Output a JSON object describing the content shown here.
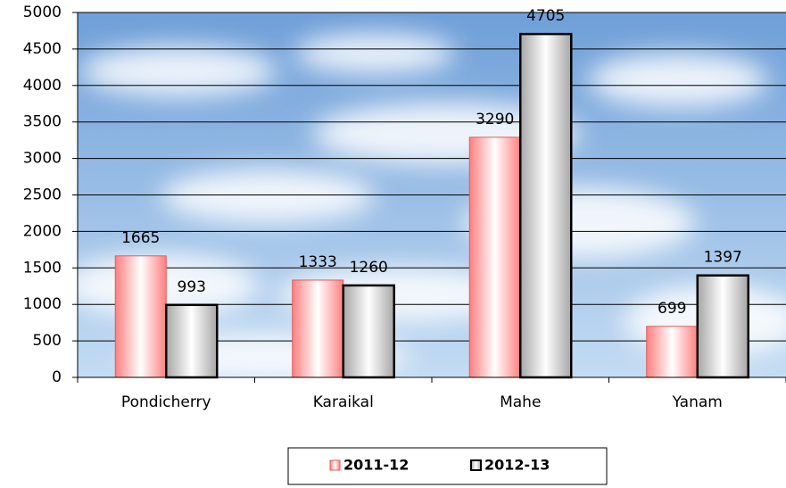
{
  "chart_data": {
    "type": "bar",
    "categories": [
      "Pondicherry",
      "Karaikal",
      "Mahe",
      "Yanam"
    ],
    "series": [
      {
        "name": "2011-12",
        "color": "#ff7f7f",
        "values": [
          1665,
          1333,
          3290,
          699
        ]
      },
      {
        "name": "2012-13",
        "color": "#a6a6a6",
        "values": [
          993,
          1260,
          4705,
          1397
        ]
      }
    ],
    "ylim": [
      0,
      5000
    ],
    "yticks": [
      0,
      500,
      1000,
      1500,
      2000,
      2500,
      3000,
      3500,
      4000,
      4500,
      5000
    ],
    "grid": true,
    "legend": "bottom"
  }
}
